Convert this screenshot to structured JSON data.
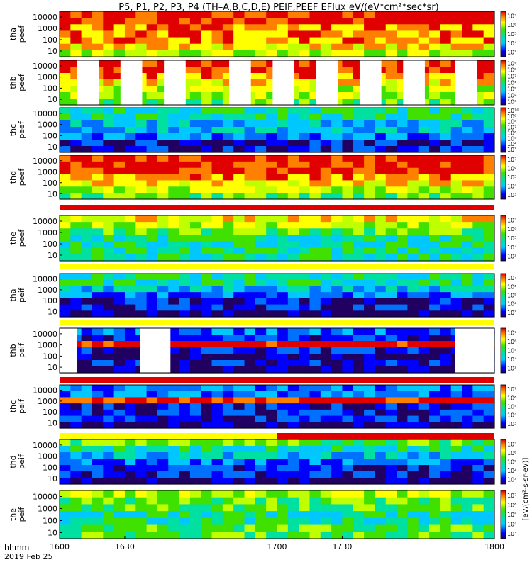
{
  "title": "P5, P1, P2, P3, P4 (TH–A,B,C,D,E) PEIF,PEEF EFlux eV/(eV*cm²*sec*sr)",
  "cbar_unit_label": "[eV/(cm²-s-sr-eV)]",
  "footer": {
    "time_label": "hhmm",
    "date_label": "2019 Feb 25"
  },
  "chart_data": {
    "type": "heatmap",
    "x_ticks": [
      "1600",
      "1630",
      "1700",
      "1730",
      "1800"
    ],
    "x_range": [
      1600,
      1800
    ],
    "y_scale": "log",
    "colormap": "rainbow",
    "panels": [
      {
        "id": "tha-peef",
        "probe": "tha",
        "species": "peef",
        "yticks": [
          "10",
          "100",
          "1000",
          "10000"
        ],
        "cbar_ticks": [
          "10³",
          "10⁴",
          "10⁵",
          "10⁶",
          "10⁷"
        ],
        "status_bar": []
      },
      {
        "id": "thb-peef",
        "probe": "thb",
        "species": "peef",
        "yticks": [
          "10",
          "100",
          "1000",
          "10000"
        ],
        "cbar_ticks": [
          "10³",
          "10⁴",
          "10⁵",
          "10⁶",
          "10⁷",
          "10⁸",
          "10⁹"
        ],
        "status_bar": [],
        "gaps": [
          [
            1608,
            1618
          ],
          [
            1628,
            1638
          ],
          [
            1648,
            1658
          ],
          [
            1678,
            1688
          ],
          [
            1698,
            1708
          ],
          [
            1718,
            1728
          ],
          [
            1738,
            1748
          ],
          [
            1758,
            1768
          ],
          [
            1782,
            1792
          ]
        ]
      },
      {
        "id": "thc-peef",
        "probe": "thc",
        "species": "peef",
        "yticks": [
          "10",
          "100",
          "1000",
          "10000"
        ],
        "cbar_ticks": [
          "10³",
          "10⁴",
          "10⁵",
          "10⁶",
          "10⁷",
          "10⁸",
          "10⁹",
          "10¹⁰"
        ],
        "status_bar": []
      },
      {
        "id": "thd-peef",
        "probe": "thd",
        "species": "peef",
        "yticks": [
          "10",
          "100",
          "1000",
          "10000"
        ],
        "cbar_ticks": [
          "10³",
          "10⁴",
          "10⁵",
          "10⁶",
          "10⁷"
        ],
        "status_bar": []
      },
      {
        "id": "the-peef",
        "probe": "the",
        "species": "peef",
        "yticks": [
          "10",
          "100",
          "1000",
          "10000"
        ],
        "cbar_ticks": [
          "10³",
          "10⁴",
          "10⁵",
          "10⁶",
          "10⁷"
        ],
        "status_bar": [
          "red"
        ]
      },
      {
        "id": "tha-peif",
        "probe": "tha",
        "species": "peif",
        "yticks": [
          "10",
          "100",
          "1000",
          "10000"
        ],
        "cbar_ticks": [
          "10³",
          "10⁴",
          "10⁵",
          "10⁶",
          "10⁷"
        ],
        "status_bar": [
          "yellow"
        ]
      },
      {
        "id": "thb-peif",
        "probe": "thb",
        "species": "peif",
        "yticks": [
          "10",
          "100",
          "1000",
          "10000"
        ],
        "cbar_ticks": [
          "10³",
          "10⁴",
          "10⁵",
          "10⁶",
          "10⁷"
        ],
        "status_bar": [
          "yellow"
        ],
        "gaps": [
          [
            1600,
            1608
          ],
          [
            1637,
            1651
          ],
          [
            1782,
            1800
          ]
        ]
      },
      {
        "id": "thc-peif",
        "probe": "thc",
        "species": "peif",
        "yticks": [
          "10",
          "100",
          "1000",
          "10000"
        ],
        "cbar_ticks": [
          "10³",
          "10⁴",
          "10⁵",
          "10⁶",
          "10⁷"
        ],
        "status_bar": [
          "red"
        ]
      },
      {
        "id": "thd-peif",
        "probe": "thd",
        "species": "peif",
        "yticks": [
          "10",
          "100",
          "1000",
          "10000"
        ],
        "cbar_ticks": [
          "10³",
          "10⁴",
          "10⁵",
          "10⁶",
          "10⁷"
        ],
        "status_bar": [
          "yellow",
          "red"
        ]
      },
      {
        "id": "the-peif",
        "probe": "the",
        "species": "peif",
        "yticks": [
          "10",
          "100",
          "1000",
          "10000"
        ],
        "cbar_ticks": [
          "10³",
          "10⁴",
          "10⁵",
          "10⁶",
          "10⁷"
        ],
        "status_bar": []
      }
    ]
  }
}
